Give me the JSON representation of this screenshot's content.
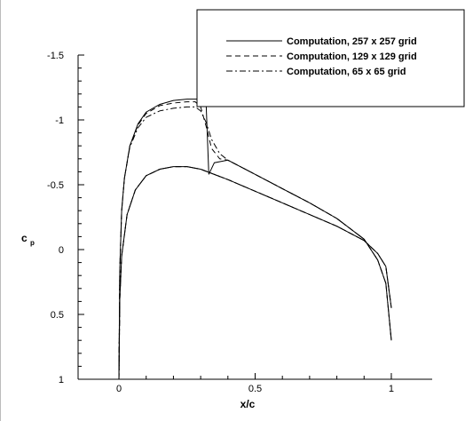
{
  "chart_data": {
    "type": "line",
    "xlabel": "x/c",
    "ylabel": "c",
    "ylabel_subscript": "p",
    "xlim": [
      -0.15,
      1.15
    ],
    "ylim": [
      1.0,
      -1.5
    ],
    "y_inverted": true,
    "xticks": [
      0,
      0.5,
      1
    ],
    "xtick_labels": [
      "0",
      "0.5",
      "1"
    ],
    "yticks": [
      -1.5,
      -1,
      -0.5,
      0,
      0.5,
      1
    ],
    "ytick_labels": [
      "-1.5",
      "-1",
      "-0.5",
      "0",
      "0.5",
      "1"
    ],
    "grid": false,
    "legend_placement": "top-right",
    "series": [
      {
        "name": "Computation, 257 x 257 grid",
        "dash": "solid",
        "upper": {
          "x": [
            0,
            0.003,
            0.01,
            0.02,
            0.04,
            0.07,
            0.1,
            0.15,
            0.2,
            0.25,
            0.29,
            0.305,
            0.32,
            0.33,
            0.35,
            0.4,
            0.5,
            0.6,
            0.7,
            0.8,
            0.9,
            0.95,
            0.98,
            1.0
          ],
          "y": [
            1.0,
            0.15,
            -0.3,
            -0.55,
            -0.8,
            -0.97,
            -1.06,
            -1.12,
            -1.15,
            -1.16,
            -1.16,
            -1.15,
            -1.12,
            -0.58,
            -0.67,
            -0.69,
            -0.58,
            -0.47,
            -0.36,
            -0.24,
            -0.08,
            0.08,
            0.26,
            0.7
          ]
        },
        "lower": {
          "x": [
            0,
            0.003,
            0.01,
            0.03,
            0.06,
            0.1,
            0.15,
            0.2,
            0.25,
            0.3,
            0.4,
            0.5,
            0.6,
            0.7,
            0.8,
            0.9,
            0.95,
            0.98,
            1.0
          ],
          "y": [
            1.0,
            0.38,
            0.05,
            -0.27,
            -0.46,
            -0.57,
            -0.62,
            -0.64,
            -0.64,
            -0.62,
            -0.54,
            -0.45,
            -0.36,
            -0.27,
            -0.18,
            -0.07,
            0.03,
            0.13,
            0.45
          ]
        }
      },
      {
        "name": "Computation, 129 x 129 grid",
        "dash": "dashed",
        "upper": {
          "x": [
            0,
            0.003,
            0.01,
            0.02,
            0.04,
            0.07,
            0.1,
            0.15,
            0.2,
            0.25,
            0.28,
            0.3,
            0.32,
            0.34,
            0.37,
            0.4,
            0.5,
            0.6,
            0.7,
            0.8,
            0.9,
            0.95,
            0.98,
            1.0
          ],
          "y": [
            1.0,
            0.15,
            -0.3,
            -0.55,
            -0.8,
            -0.96,
            -1.05,
            -1.11,
            -1.13,
            -1.14,
            -1.14,
            -1.1,
            -0.95,
            -0.78,
            -0.7,
            -0.69,
            -0.58,
            -0.47,
            -0.36,
            -0.24,
            -0.08,
            0.08,
            0.26,
            0.7
          ]
        },
        "lower": {
          "x": [
            0,
            0.003,
            0.01,
            0.03,
            0.06,
            0.1,
            0.15,
            0.2,
            0.25,
            0.3,
            0.4,
            0.5,
            0.6,
            0.7,
            0.8,
            0.9,
            0.95,
            0.98,
            1.0
          ],
          "y": [
            1.0,
            0.38,
            0.05,
            -0.27,
            -0.46,
            -0.57,
            -0.62,
            -0.64,
            -0.64,
            -0.62,
            -0.54,
            -0.45,
            -0.36,
            -0.27,
            -0.18,
            -0.07,
            0.03,
            0.13,
            0.45
          ]
        }
      },
      {
        "name": "Computation, 65 x 65 grid",
        "dash": "dashdot",
        "upper": {
          "x": [
            0,
            0.003,
            0.01,
            0.02,
            0.04,
            0.07,
            0.1,
            0.15,
            0.2,
            0.25,
            0.28,
            0.3,
            0.32,
            0.34,
            0.37,
            0.4,
            0.5,
            0.6,
            0.7,
            0.8,
            0.9,
            0.95,
            0.98,
            1.0
          ],
          "y": [
            1.0,
            0.15,
            -0.3,
            -0.55,
            -0.79,
            -0.94,
            -1.02,
            -1.07,
            -1.09,
            -1.1,
            -1.1,
            -1.07,
            -0.98,
            -0.85,
            -0.74,
            -0.69,
            -0.58,
            -0.47,
            -0.36,
            -0.24,
            -0.08,
            0.08,
            0.26,
            0.7
          ]
        },
        "lower": {
          "x": [
            0,
            0.003,
            0.01,
            0.03,
            0.06,
            0.1,
            0.15,
            0.2,
            0.25,
            0.3,
            0.4,
            0.5,
            0.6,
            0.7,
            0.8,
            0.9,
            0.95,
            0.98,
            1.0
          ],
          "y": [
            1.0,
            0.38,
            0.05,
            -0.27,
            -0.46,
            -0.57,
            -0.62,
            -0.64,
            -0.64,
            -0.62,
            -0.54,
            -0.45,
            -0.36,
            -0.27,
            -0.18,
            -0.07,
            0.03,
            0.13,
            0.45
          ]
        }
      }
    ]
  }
}
